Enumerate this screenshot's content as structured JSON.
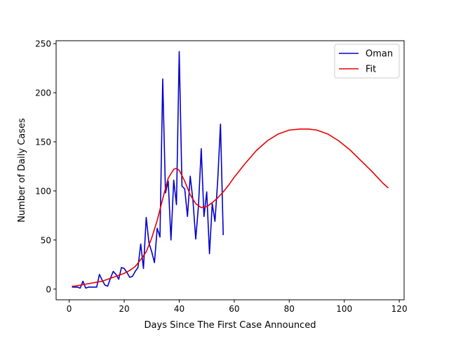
{
  "chart_data": {
    "type": "line",
    "xlabel": "Days Since The First Case Announced",
    "ylabel": "Number of Daily Cases",
    "xlim": [
      -4.75,
      121.75
    ],
    "ylim": [
      -10.9,
      253
    ],
    "xticks": [
      0,
      20,
      40,
      60,
      80,
      100,
      120
    ],
    "yticks": [
      0,
      50,
      100,
      150,
      200,
      250
    ],
    "legend_position": "top-right",
    "grid": false,
    "series": [
      {
        "name": "Oman",
        "color": "#0000cc",
        "x": [
          1,
          2,
          3,
          4,
          5,
          6,
          7,
          8,
          9,
          10,
          11,
          12,
          13,
          14,
          15,
          16,
          17,
          18,
          19,
          20,
          21,
          22,
          23,
          24,
          25,
          26,
          27,
          28,
          29,
          30,
          31,
          32,
          33,
          34,
          35,
          36,
          37,
          38,
          39,
          40,
          41,
          42,
          43,
          44,
          45,
          46,
          47,
          48,
          49,
          50,
          51,
          52,
          53,
          54,
          55,
          56
        ],
        "y": [
          2,
          2,
          2,
          1,
          8,
          1,
          2,
          2,
          2,
          2,
          15,
          9,
          4,
          3,
          11,
          18,
          15,
          10,
          22,
          21,
          17,
          12,
          13,
          18,
          22,
          46,
          21,
          73,
          47,
          38,
          27,
          62,
          53,
          214,
          98,
          110,
          50,
          111,
          86,
          242,
          105,
          102,
          74,
          115,
          90,
          51,
          85,
          143,
          74,
          99,
          36,
          87,
          69,
          111,
          168,
          55
        ]
      },
      {
        "name": "Fit",
        "color": "#e80000",
        "x": [
          1,
          2,
          4,
          6,
          8,
          10,
          12,
          14,
          16,
          18,
          20,
          22,
          24,
          26,
          28,
          30,
          32,
          34,
          36,
          38,
          39,
          40,
          42,
          44,
          46,
          48,
          50,
          52,
          54,
          56,
          58,
          60,
          64,
          68,
          72,
          76,
          80,
          84,
          87,
          90,
          94,
          98,
          102,
          106,
          110,
          114,
          116
        ],
        "y": [
          3,
          3,
          4,
          5,
          6,
          7,
          8,
          10,
          12,
          14,
          16,
          19,
          23,
          30,
          38,
          52,
          70,
          92,
          113,
          122,
          123,
          121,
          110,
          96,
          87,
          83,
          84,
          88,
          93,
          99,
          106,
          114,
          128,
          141,
          151,
          158,
          162,
          163,
          163,
          162,
          158,
          151,
          142,
          131,
          120,
          108,
          103
        ]
      }
    ]
  }
}
